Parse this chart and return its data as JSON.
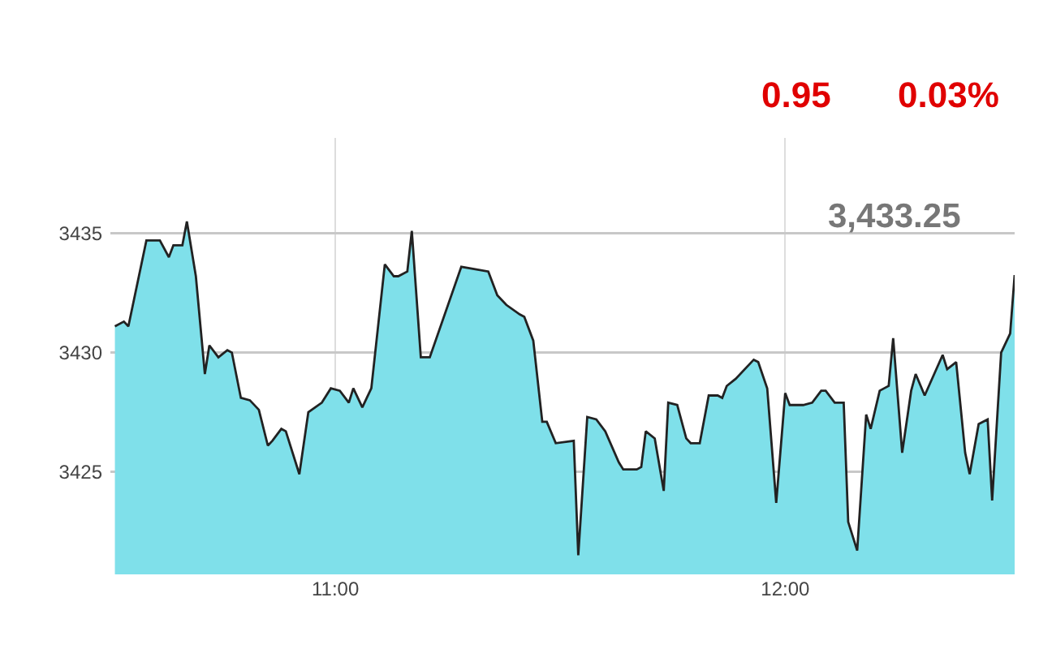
{
  "chart_data": {
    "type": "area",
    "annotations": [
      "0.95",
      "0.03%",
      "3,433.25"
    ],
    "x": [
      10.51,
      10.53,
      10.54,
      10.58,
      10.61,
      10.63,
      10.64,
      10.66,
      10.67,
      10.69,
      10.71,
      10.72,
      10.74,
      10.76,
      10.77,
      10.79,
      10.81,
      10.83,
      10.85,
      10.86,
      10.88,
      10.89,
      10.92,
      10.94,
      10.97,
      10.99,
      11.01,
      11.03,
      11.04,
      11.06,
      11.08,
      11.11,
      11.13,
      11.14,
      11.16,
      11.17,
      11.19,
      11.21,
      11.28,
      11.34,
      11.36,
      11.38,
      11.41,
      11.42,
      11.44,
      11.46,
      11.47,
      11.49,
      11.53,
      11.54,
      11.56,
      11.58,
      11.6,
      11.63,
      11.64,
      11.67,
      11.68,
      11.69,
      11.71,
      11.73,
      11.74,
      11.76,
      11.78,
      11.79,
      11.81,
      11.83,
      11.85,
      11.86,
      11.87,
      11.89,
      11.93,
      11.94,
      11.96,
      11.98,
      12.0,
      12.01,
      12.04,
      12.06,
      12.08,
      12.09,
      12.11,
      12.13,
      12.14,
      12.16,
      12.18,
      12.19,
      12.21,
      12.23,
      12.24,
      12.26,
      12.28,
      12.29,
      12.31,
      12.35,
      12.36,
      12.38,
      12.4,
      12.41,
      12.43,
      12.45,
      12.46,
      12.48,
      12.5,
      12.51
    ],
    "series": [
      {
        "color": "#7fe0ea",
        "values": [
          3431.1,
          3431.3,
          3431.1,
          3434.7,
          3434.7,
          3434.0,
          3434.5,
          3434.5,
          3435.5,
          3433.2,
          3429.1,
          3430.3,
          3429.8,
          3430.1,
          3430.0,
          3428.1,
          3428.0,
          3427.6,
          3426.1,
          3426.3,
          3426.8,
          3426.7,
          3424.9,
          3427.5,
          3427.9,
          3428.5,
          3428.4,
          3427.9,
          3428.5,
          3427.7,
          3428.5,
          3433.7,
          3433.2,
          3433.2,
          3433.4,
          3435.1,
          3429.8,
          3429.8,
          3433.6,
          3433.4,
          3432.4,
          3432.0,
          3431.6,
          3431.5,
          3430.5,
          3427.1,
          3427.1,
          3426.2,
          3426.3,
          3421.5,
          3427.3,
          3427.2,
          3426.7,
          3425.4,
          3425.1,
          3425.1,
          3425.2,
          3426.7,
          3426.4,
          3424.2,
          3427.9,
          3427.8,
          3426.4,
          3426.2,
          3426.2,
          3428.2,
          3428.2,
          3428.1,
          3428.6,
          3428.9,
          3429.7,
          3429.6,
          3428.5,
          3423.7,
          3428.3,
          3427.8,
          3427.8,
          3427.9,
          3428.4,
          3428.4,
          3427.9,
          3427.9,
          3422.9,
          3421.7,
          3427.4,
          3426.8,
          3428.4,
          3428.6,
          3430.6,
          3425.8,
          3428.4,
          3429.1,
          3428.2,
          3429.9,
          3429.3,
          3429.6,
          3425.8,
          3424.9,
          3427.0,
          3427.2,
          3423.8,
          3430.0,
          3430.8,
          3433.25
        ]
      }
    ],
    "xlim": [
      10.5,
      12.51
    ],
    "ylim": [
      3420.7,
      3439
    ],
    "xticks": [
      {
        "value": 11,
        "label": "11:00"
      },
      {
        "value": 12,
        "label": "12:00"
      }
    ],
    "yticks": [
      3425,
      3430,
      3435
    ],
    "grid": true,
    "marker": "none",
    "line_style": "solid"
  }
}
